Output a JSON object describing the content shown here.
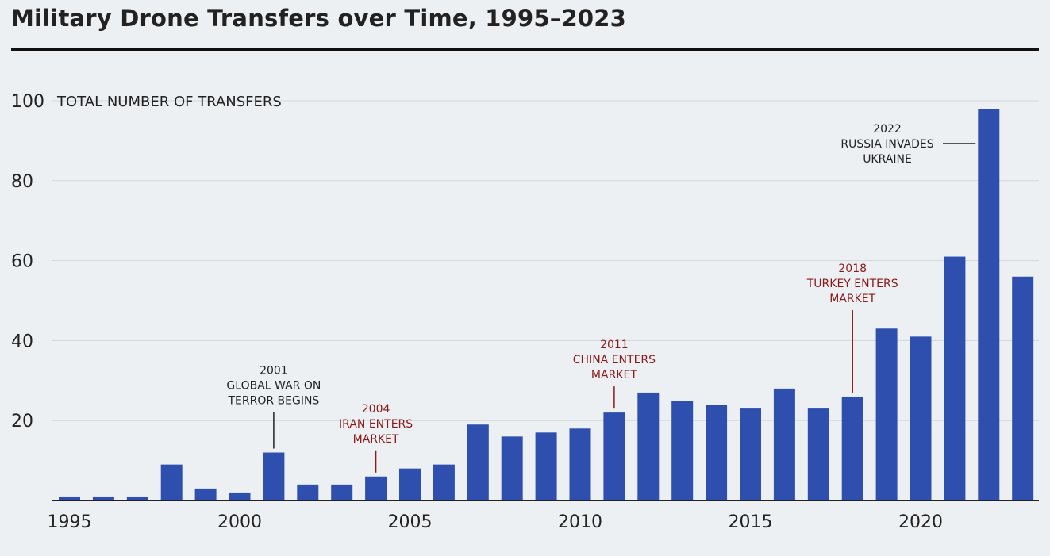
{
  "header": {
    "title": "Military Drone Transfers over Time, 1995–2023"
  },
  "chart_data": {
    "type": "bar",
    "title": "Military Drone Transfers over Time, 1995–2023",
    "ylabel": "TOTAL NUMBER OF TRANSFERS",
    "xlabel": "",
    "ylim": [
      0,
      100
    ],
    "yticks": [
      20,
      40,
      60,
      80,
      100
    ],
    "xticks": [
      1995,
      2000,
      2005,
      2010,
      2015,
      2020
    ],
    "grid": true,
    "bar_color": "#2e4fae",
    "categories": [
      1995,
      1996,
      1997,
      1998,
      1999,
      2000,
      2001,
      2002,
      2003,
      2004,
      2005,
      2006,
      2007,
      2008,
      2009,
      2010,
      2011,
      2012,
      2013,
      2014,
      2015,
      2016,
      2017,
      2018,
      2019,
      2020,
      2021,
      2022,
      2023
    ],
    "values": [
      1,
      1,
      1,
      9,
      3,
      2,
      12,
      4,
      4,
      6,
      8,
      9,
      19,
      16,
      17,
      18,
      22,
      27,
      25,
      24,
      23,
      28,
      23,
      26,
      43,
      41,
      61,
      98,
      56
    ],
    "annotations": [
      {
        "year": 2001,
        "value": 12,
        "lines": [
          "2001",
          "GLOBAL WAR ON",
          "TERROR BEGINS"
        ],
        "color": "#222222",
        "style": "above"
      },
      {
        "year": 2004,
        "value": 6,
        "lines": [
          "2004",
          "IRAN ENTERS",
          "MARKET"
        ],
        "color": "#8b1a1a",
        "style": "above"
      },
      {
        "year": 2011,
        "value": 22,
        "lines": [
          "2011",
          "CHINA ENTERS",
          "MARKET"
        ],
        "color": "#8b1a1a",
        "style": "above"
      },
      {
        "year": 2018,
        "value": 26,
        "lines": [
          "2018",
          "TURKEY ENTERS",
          "MARKET"
        ],
        "color": "#8b1a1a",
        "style": "above"
      },
      {
        "year": 2022,
        "value": 98,
        "lines": [
          "2022",
          "RUSSIA INVADES",
          "UKRAINE"
        ],
        "color": "#222222",
        "style": "left"
      }
    ]
  }
}
